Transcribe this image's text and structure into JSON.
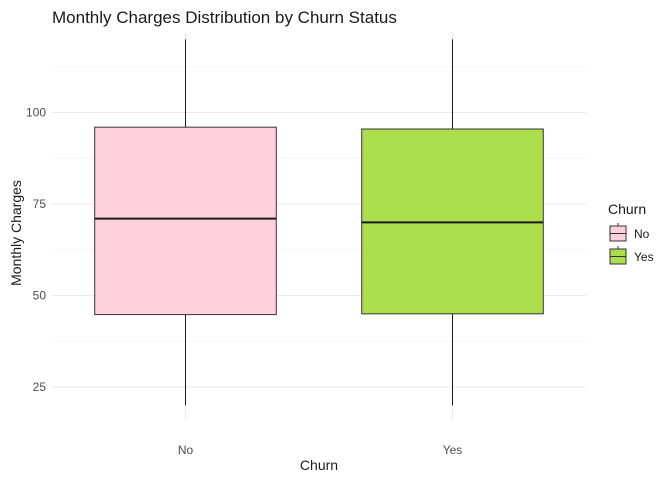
{
  "chart_data": {
    "type": "boxplot",
    "title": "Monthly Charges Distribution by Churn Status",
    "xlabel": "Churn",
    "ylabel": "Monthly Charges",
    "categories": [
      "No",
      "Yes"
    ],
    "ylim": [
      16,
      122
    ],
    "yticks": [
      25,
      50,
      75,
      100
    ],
    "grid": true,
    "boxes": [
      {
        "category": "No",
        "min": 20,
        "q1": 44.8,
        "median": 71,
        "q3": 96,
        "max": 120,
        "color": "#ffd1dc"
      },
      {
        "category": "Yes",
        "min": 20,
        "q1": 45,
        "median": 70,
        "q3": 95.5,
        "max": 120,
        "color": "#abdd4c"
      }
    ],
    "legend": {
      "title": "Churn",
      "position": "right",
      "entries": [
        {
          "label": "No",
          "color": "#ffd1dc"
        },
        {
          "label": "Yes",
          "color": "#abdd4c"
        }
      ]
    }
  }
}
